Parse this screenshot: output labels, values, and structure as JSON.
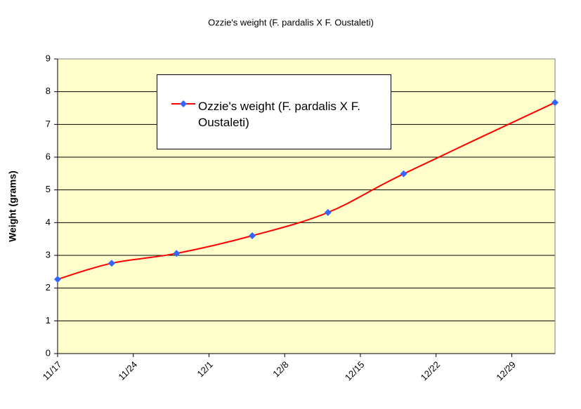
{
  "chart_data": {
    "type": "line",
    "title": "Ozzie's weight (F. pardalis X F. Oustaleti)",
    "y_label": "Weight (grams)",
    "x": [
      "11/17",
      "11/22",
      "11/28",
      "12/5",
      "12/12",
      "12/19",
      "1/2"
    ],
    "series": [
      {
        "name": "Ozzie's weight (F. pardalis X F. Oustaleti)",
        "color": "#ff0000",
        "marker_color": "#3366ff",
        "values": [
          2.27,
          2.76,
          3.06,
          3.6,
          4.31,
          5.49,
          7.67
        ]
      }
    ],
    "xlim": [
      "11/17",
      "1/2"
    ],
    "xticks": [
      "11/17",
      "11/24",
      "12/1",
      "12/8",
      "12/15",
      "12/22",
      "12/29"
    ],
    "ylim": [
      0,
      9
    ],
    "yticks": [
      0,
      1,
      2,
      3,
      4,
      5,
      6,
      7,
      8,
      9
    ],
    "grid": true,
    "plot_background": "#ffffcc",
    "legend": "upper left",
    "smooth": true
  }
}
